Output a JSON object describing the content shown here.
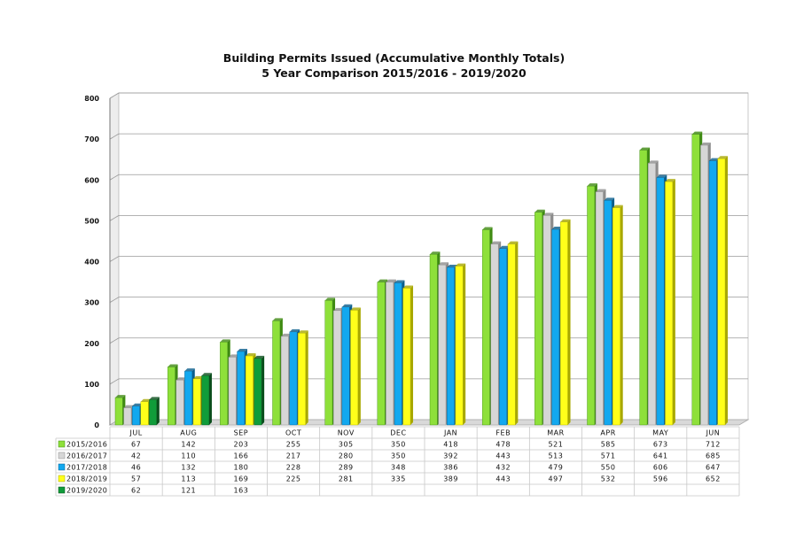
{
  "chart_data": {
    "type": "bar",
    "title": "Building Permits Issued (Accumulative Monthly Totals)",
    "subtitle": "5 Year Comparison 2015/2016 - 2019/2020",
    "xlabel": "",
    "ylabel": "",
    "ylim": [
      0,
      800
    ],
    "yticks": [
      "0",
      "100",
      "200",
      "300",
      "400",
      "500",
      "600",
      "700",
      "800"
    ],
    "grid": true,
    "legend": "data-table-left",
    "categories": [
      "JUL",
      "AUG",
      "SEP",
      "OCT",
      "NOV",
      "DEC",
      "JAN",
      "FEB",
      "MAR",
      "APR",
      "MAY",
      "JUN"
    ],
    "series": [
      {
        "name": "2015/2016",
        "color": "#8ee03a",
        "dark": "#3e8a12",
        "values": [
          67,
          142,
          203,
          255,
          305,
          350,
          418,
          478,
          521,
          585,
          673,
          712
        ]
      },
      {
        "name": "2016/2017",
        "color": "#d6d6d6",
        "dark": "#8c8c8c",
        "values": [
          42,
          110,
          166,
          217,
          280,
          350,
          392,
          443,
          513,
          571,
          641,
          685
        ]
      },
      {
        "name": "2017/2018",
        "color": "#12a8ef",
        "dark": "#0a5e8c",
        "values": [
          46,
          132,
          180,
          228,
          289,
          348,
          386,
          432,
          479,
          550,
          606,
          647
        ]
      },
      {
        "name": "2018/2019",
        "color": "#ffff1a",
        "dark": "#a8a800",
        "values": [
          57,
          113,
          169,
          225,
          281,
          335,
          389,
          443,
          497,
          532,
          596,
          652
        ]
      },
      {
        "name": "2019/2020",
        "color": "#109c3a",
        "dark": "#0a4e1c",
        "values": [
          62,
          121,
          163,
          null,
          null,
          null,
          null,
          null,
          null,
          null,
          null,
          null
        ]
      }
    ]
  }
}
